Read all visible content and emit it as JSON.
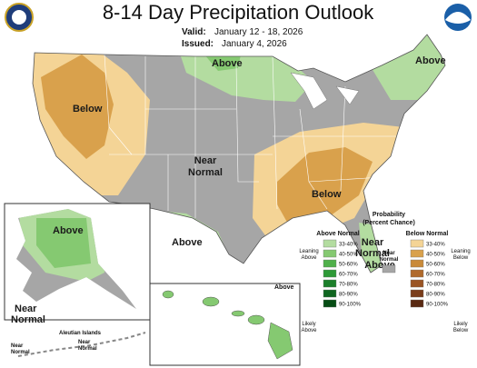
{
  "header": {
    "title": "8-14 Day Precipitation Outlook",
    "valid_label": "Valid:",
    "valid": "January 12 - 18, 2026",
    "issued_label": "Issued:",
    "issued": "January 4, 2026"
  },
  "map": {
    "conus": [
      "Above",
      "Above",
      "Below",
      "Near",
      "Normal",
      "Below",
      "Above",
      "Near",
      "Normal",
      "Above"
    ],
    "alaska": [
      "Above",
      "Near",
      "Normal"
    ],
    "aleutians": [
      "Aleutian Islands",
      "Near",
      "Normal",
      "Near",
      "Normal"
    ],
    "hawaii": [
      "Above"
    ]
  },
  "legend": {
    "title": [
      "Probability",
      "(Percent Chance)"
    ],
    "above_header": "Above Normal",
    "below_header": "Below Normal",
    "near": [
      "Near",
      "Normal"
    ],
    "leaning_above": [
      "Leaning",
      "Above"
    ],
    "likely_above": [
      "Likely",
      "Above"
    ],
    "leaning_below": [
      "Leaning",
      "Below"
    ],
    "likely_below": [
      "Likely",
      "Below"
    ],
    "near_color": "#a6a6a6",
    "above": [
      {
        "range": "33-40%",
        "color": "#b3dca0"
      },
      {
        "range": "40-50%",
        "color": "#85c971"
      },
      {
        "range": "50-60%",
        "color": "#4fb04a"
      },
      {
        "range": "60-70%",
        "color": "#2e9a37"
      },
      {
        "range": "70-80%",
        "color": "#1b7f2a"
      },
      {
        "range": "80-90%",
        "color": "#0f6620"
      },
      {
        "range": "90-100%",
        "color": "#074d15"
      }
    ],
    "below": [
      {
        "range": "33-40%",
        "color": "#f4d496"
      },
      {
        "range": "40-50%",
        "color": "#d9a14c"
      },
      {
        "range": "50-60%",
        "color": "#c98a3a"
      },
      {
        "range": "60-70%",
        "color": "#b06a2c"
      },
      {
        "range": "70-80%",
        "color": "#9a5424"
      },
      {
        "range": "80-90%",
        "color": "#7a3d1a"
      },
      {
        "range": "90-100%",
        "color": "#5a2a12"
      }
    ]
  }
}
